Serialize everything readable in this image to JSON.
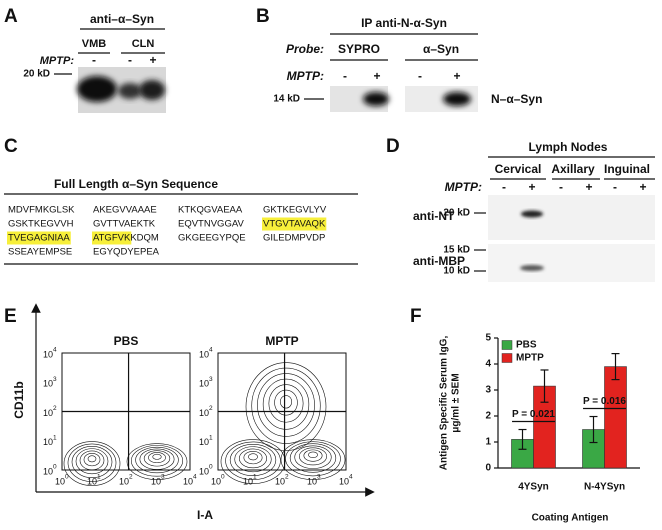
{
  "panels": {
    "A": {
      "label": "A",
      "antibody": "anti–α–Syn",
      "lanes": [
        "VMB",
        "CLN"
      ],
      "mptp_label": "MPTP:",
      "mptp": [
        "-",
        "-",
        "+"
      ],
      "marker": "20 kD"
    },
    "B": {
      "label": "B",
      "ip": "IP anti-N-α-Syn",
      "probe_label": "Probe:",
      "probes": [
        "SYPRO",
        "α–Syn"
      ],
      "mptp_label": "MPTP:",
      "mptp": [
        "-",
        "+",
        "-",
        "+"
      ],
      "marker": "14 kD",
      "band": "N–α–Syn"
    },
    "C": {
      "label": "C",
      "title": "Full Length α–Syn Sequence",
      "rows": [
        [
          [
            {
              "text": "MDVFMKGLSK",
              "highlight": false
            }
          ],
          [
            {
              "text": "AKEGVVAAAE",
              "highlight": false
            }
          ],
          [
            {
              "text": "KTKQGVAEAA",
              "highlight": false
            }
          ],
          [
            {
              "text": "GKTKEGVLYV",
              "highlight": false
            }
          ]
        ],
        [
          [
            {
              "text": "GSKTKEGVVH",
              "highlight": false
            }
          ],
          [
            {
              "text": "GVTTVAEKTK",
              "highlight": false
            }
          ],
          [
            {
              "text": "EQVTNVGGAV",
              "highlight": false
            }
          ],
          [
            {
              "text": "VTGVTAVAQK",
              "highlight": true
            }
          ]
        ],
        [
          [
            {
              "text": "TVEGAGNIAA",
              "highlight": true
            }
          ],
          [
            {
              "text": "ATGFVK",
              "highlight": true
            },
            {
              "text": "KDQM",
              "highlight": false
            }
          ],
          [
            {
              "text": "GKGEEGYPQE",
              "highlight": false
            }
          ],
          [
            {
              "text": "GILEDMPVDP",
              "highlight": false
            }
          ]
        ],
        [
          [
            {
              "text": "SSEAYEMPSE",
              "highlight": false
            }
          ],
          [
            {
              "text": "EGYQDYEPEA",
              "highlight": false
            }
          ]
        ]
      ]
    },
    "D": {
      "label": "D",
      "title": "Lymph Nodes",
      "nodes": [
        "Cervical",
        "Axillary",
        "Inguinal"
      ],
      "mptp_label": "MPTP:",
      "mptp": [
        "-",
        "+",
        "-",
        "+",
        "-",
        "+"
      ],
      "blots": [
        {
          "antibody": "anti-NT",
          "markers": [
            "20 kD"
          ]
        },
        {
          "antibody": "anti-MBP",
          "markers": [
            "15 kD",
            "10 kD"
          ]
        }
      ]
    },
    "E": {
      "label": "E",
      "plots": [
        "PBS",
        "MPTP"
      ],
      "y_axis": "CD11b",
      "x_axis": "I-A",
      "ticks": [
        {
          "base": "10",
          "exp": "0"
        },
        {
          "base": "10",
          "exp": "1"
        },
        {
          "base": "10",
          "exp": "2"
        },
        {
          "base": "10",
          "exp": "3"
        },
        {
          "base": "10",
          "exp": "4"
        }
      ]
    },
    "F": {
      "label": "F"
    }
  },
  "chart_data": {
    "type": "bar",
    "ylabel": [
      "Antigen Specific Serum IgG,",
      "μg/ml ± SEM"
    ],
    "xlabel": "Coating Antigen",
    "categories": [
      "4YSyn",
      "N-4YSyn"
    ],
    "series": [
      {
        "name": "PBS",
        "color": "#3aa845",
        "values": [
          1.1,
          1.48
        ],
        "errors": [
          0.38,
          0.5
        ]
      },
      {
        "name": "MPTP",
        "color": "#e2231f",
        "values": [
          3.15,
          3.9
        ],
        "errors": [
          0.62,
          0.5
        ]
      }
    ],
    "annotations": [
      "P = 0.021",
      "P = 0.016"
    ],
    "ylim": [
      0,
      5
    ],
    "yticks": [
      0,
      1,
      2,
      3,
      4,
      5
    ],
    "legend": "top-left"
  }
}
